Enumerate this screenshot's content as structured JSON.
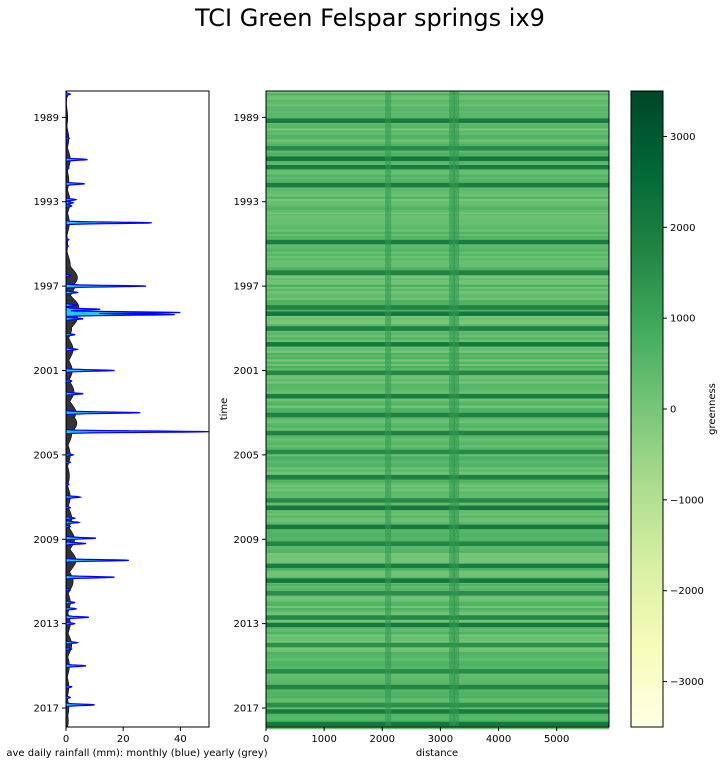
{
  "chart_data": [
    {
      "type": "area",
      "panel": "rainfall",
      "title": "TCI Green Felspar springs ix9",
      "xlabel": "ave daily rainfall (mm): monthly (blue) yearly (grey)",
      "ylabel": "",
      "xlim": [
        0,
        50
      ],
      "ylim": [
        1987.75,
        2017.9
      ],
      "x_ticks": [
        0,
        20,
        40
      ],
      "y_ticks": [
        1989,
        1993,
        1997,
        2001,
        2005,
        2009,
        2013,
        2017
      ],
      "colors": {
        "monthly_fill": "#1ec8f0",
        "monthly_line": "#0000ff",
        "yearly_fill": "#333333"
      },
      "series": [
        {
          "role": "monthly",
          "points": [
            [
              1987.9,
              1.5
            ],
            [
              1988.0,
              0.5
            ],
            [
              1988.1,
              0.2
            ],
            [
              1989.85,
              0.8
            ],
            [
              1990.0,
              1.2
            ],
            [
              1990.2,
              0.6
            ],
            [
              1991.0,
              7.5
            ],
            [
              1991.4,
              1.0
            ],
            [
              1992.15,
              6.5
            ],
            [
              1992.9,
              3.5
            ],
            [
              1993.05,
              2.5
            ],
            [
              1993.2,
              2.0
            ],
            [
              1994.0,
              30.0
            ],
            [
              1994.8,
              1.0
            ],
            [
              1995.1,
              0.8
            ],
            [
              1996.5,
              1.5
            ],
            [
              1997.0,
              28.0
            ],
            [
              1997.3,
              4.0
            ],
            [
              1997.9,
              4.0
            ],
            [
              1998.1,
              12.0
            ],
            [
              1998.25,
              40.0
            ],
            [
              1998.35,
              38.0
            ],
            [
              1998.55,
              6.0
            ],
            [
              1999.3,
              3.0
            ],
            [
              2000.0,
              4.0
            ],
            [
              2001.0,
              17.0
            ],
            [
              2001.5,
              2.0
            ],
            [
              2002.1,
              6.0
            ],
            [
              2003.0,
              26.0
            ],
            [
              2003.9,
              50.0
            ],
            [
              2005.0,
              2.5
            ],
            [
              2005.35,
              1.5
            ],
            [
              2006.4,
              1.0
            ],
            [
              2007.0,
              5.0
            ],
            [
              2007.5,
              1.5
            ],
            [
              2008.0,
              3.0
            ],
            [
              2008.2,
              4.5
            ],
            [
              2008.4,
              1.5
            ],
            [
              2008.95,
              10.5
            ],
            [
              2009.2,
              7.0
            ],
            [
              2010.0,
              22.0
            ],
            [
              2010.8,
              17.0
            ],
            [
              2011.4,
              1.5
            ],
            [
              2012.0,
              3.0
            ],
            [
              2012.3,
              3.5
            ],
            [
              2012.7,
              8.0
            ],
            [
              2013.0,
              3.0
            ],
            [
              2013.9,
              4.0
            ],
            [
              2014.2,
              2.0
            ],
            [
              2015.0,
              7.0
            ],
            [
              2016.0,
              2.0
            ],
            [
              2016.5,
              1.5
            ],
            [
              2016.85,
              10.0
            ]
          ]
        },
        {
          "role": "yearly",
          "points": [
            [
              1987.9,
              0.3
            ],
            [
              1989.0,
              0.6
            ],
            [
              1990.0,
              1.0
            ],
            [
              1991.0,
              1.5
            ],
            [
              1992.0,
              1.0
            ],
            [
              1993.0,
              1.5
            ],
            [
              1994.0,
              1.2
            ],
            [
              1995.0,
              0.6
            ],
            [
              1996.0,
              1.5
            ],
            [
              1996.6,
              4.0
            ],
            [
              1997.0,
              3.0
            ],
            [
              1998.0,
              4.5
            ],
            [
              1998.5,
              4.0
            ],
            [
              1999.0,
              2.0
            ],
            [
              2000.0,
              2.5
            ],
            [
              2001.0,
              2.2
            ],
            [
              2002.0,
              2.8
            ],
            [
              2003.0,
              3.5
            ],
            [
              2003.5,
              3.8
            ],
            [
              2004.0,
              2.0
            ],
            [
              2005.0,
              1.5
            ],
            [
              2006.0,
              1.2
            ],
            [
              2007.0,
              1.5
            ],
            [
              2008.0,
              2.0
            ],
            [
              2009.0,
              3.0
            ],
            [
              2010.0,
              3.5
            ],
            [
              2011.0,
              2.5
            ],
            [
              2012.0,
              1.5
            ],
            [
              2013.0,
              1.5
            ],
            [
              2014.0,
              2.0
            ],
            [
              2015.0,
              1.2
            ],
            [
              2016.0,
              1.0
            ],
            [
              2017.0,
              1.0
            ],
            [
              2017.6,
              0.8
            ]
          ]
        }
      ]
    },
    {
      "type": "heatmap",
      "panel": "greenness",
      "xlabel": "distance",
      "ylabel": "time",
      "xlim": [
        0,
        5900
      ],
      "ylim": [
        1987.75,
        2017.9
      ],
      "x_ticks": [
        0,
        1000,
        2000,
        3000,
        4000,
        5000
      ],
      "y_ticks": [
        1989,
        1993,
        1997,
        2001,
        2005,
        2009,
        2013,
        2017
      ],
      "colorbar": {
        "label": "greenness",
        "range": [
          -3500,
          3500
        ],
        "ticks": [
          3000,
          2000,
          1000,
          0,
          -1000,
          -2000,
          -3000
        ],
        "tick_labels": [
          "3000",
          "2000",
          "1000",
          "0",
          "−1000",
          "−2000",
          "−3000"
        ],
        "colormap": "YlGn",
        "stops": [
          "#ffffe5",
          "#f7fcb9",
          "#d9f0a3",
          "#addd8e",
          "#78c679",
          "#41ab5d",
          "#238443",
          "#006837",
          "#004529"
        ]
      },
      "typical_value": 350,
      "dark_band_years": [
        1989.15,
        1990.45,
        1990.95,
        1991.35,
        1992.2,
        1994.9,
        1996.35,
        1998.0,
        1998.3,
        1999.0,
        1999.75,
        2001.1,
        2002.2,
        2003.1,
        2003.95,
        2004.85,
        2006.05,
        2007.15,
        2007.5,
        2008.4,
        2009.2,
        2010.25,
        2010.95,
        2011.55,
        2012.7,
        2013.05,
        2014.0,
        2015.25,
        2016.0,
        2016.85,
        2017.15,
        2017.75
      ],
      "dark_column_distances": [
        2100,
        3200,
        3270
      ]
    }
  ]
}
